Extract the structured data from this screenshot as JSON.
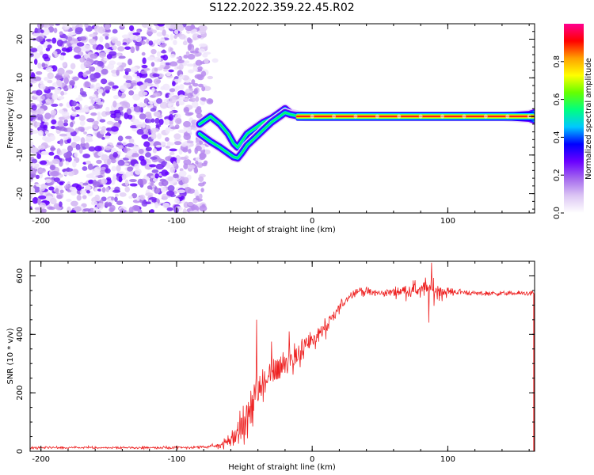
{
  "chart_data": [
    {
      "type": "heatmap",
      "title": "S122.2022.359.22.45.R02",
      "xlabel": "Height of straight line (km)",
      "ylabel": "Frequency (Hz)",
      "xlim": [
        -208,
        164
      ],
      "ylim": [
        -25,
        24
      ],
      "xticks": [
        -200,
        -100,
        0,
        100
      ],
      "xtick_labels": [
        "-200",
        "-100",
        "0",
        "100"
      ],
      "yticks": [
        -20,
        -10,
        0,
        10,
        20
      ],
      "ytick_labels": [
        "-20",
        "-10",
        "0",
        "10",
        "20"
      ],
      "noise_region_x": [
        -208,
        -78
      ],
      "doppler_track": {
        "x": [
          -83,
          -75,
          -68,
          -62,
          -58,
          -55,
          -52,
          -48,
          -42,
          -36,
          -30,
          -24,
          -20,
          -16,
          -10,
          -5,
          0,
          20,
          40,
          60,
          80,
          100,
          120,
          140,
          160,
          164
        ],
        "upper": [
          -2,
          0,
          -2,
          -4.5,
          -7,
          -8,
          -6.5,
          -4.5,
          -3,
          -1.5,
          -0.5,
          1,
          2,
          0.8,
          0.3,
          0.1,
          0,
          0,
          0,
          0,
          0,
          0,
          0,
          0,
          0.5,
          1
        ],
        "lower": [
          -4.5,
          -6.5,
          -8,
          -9.5,
          -10.5,
          -10.8,
          -9.5,
          -7.5,
          -5.5,
          -3.5,
          -1.5,
          0,
          1,
          0.5,
          0.1,
          0,
          0,
          0,
          0,
          0,
          0,
          0,
          0,
          0,
          -0.5,
          -1
        ]
      },
      "colorbar": {
        "label": "Normalized spectral amplitude",
        "range": [
          0,
          1
        ],
        "ticks": [
          0.0,
          0.2,
          0.4,
          0.6,
          0.8
        ],
        "tick_labels": [
          "0.0",
          "0.2",
          "0.4",
          "0.6",
          "0.8"
        ],
        "colors": [
          "#ffffff",
          "#dcc6f4",
          "#a468ee",
          "#6a00ff",
          "#0000ff",
          "#00c8ff",
          "#00ff80",
          "#66ff00",
          "#ffff00",
          "#ffa000",
          "#ff0000",
          "#ff0090"
        ]
      }
    },
    {
      "type": "line",
      "xlabel": "Height of straight line (km)",
      "ylabel": "SNR (10 * v/v)",
      "xlim": [
        -208,
        164
      ],
      "ylim": [
        0,
        650
      ],
      "xticks": [
        -200,
        -100,
        0,
        100
      ],
      "xtick_labels": [
        "-200",
        "-100",
        "0",
        "100"
      ],
      "yticks": [
        0,
        200,
        400,
        600
      ],
      "ytick_labels": [
        "0",
        "200",
        "400",
        "600"
      ],
      "color": "#ee2222",
      "series": [
        {
          "name": "SNR",
          "x": [
            -208,
            -150,
            -100,
            -80,
            -70,
            -60,
            -55,
            -50,
            -45,
            -40,
            -35,
            -30,
            -25,
            -20,
            -15,
            -10,
            -5,
            0,
            5,
            10,
            15,
            20,
            25,
            30,
            35,
            40,
            50,
            60,
            70,
            80,
            90,
            100,
            110,
            120,
            140,
            164
          ],
          "values": [
            12,
            12,
            12,
            14,
            18,
            40,
            60,
            100,
            150,
            200,
            230,
            260,
            290,
            300,
            320,
            340,
            360,
            380,
            400,
            420,
            450,
            490,
            520,
            540,
            550,
            545,
            540,
            545,
            550,
            555,
            550,
            545,
            545,
            540,
            540,
            540
          ],
          "noise": [
            4,
            4,
            4,
            5,
            8,
            30,
            45,
            60,
            70,
            70,
            70,
            70,
            60,
            60,
            55,
            50,
            45,
            45,
            40,
            35,
            30,
            25,
            15,
            12,
            15,
            15,
            12,
            15,
            25,
            35,
            40,
            15,
            10,
            8,
            8,
            8
          ]
        }
      ],
      "spikes": [
        {
          "x": -41,
          "y": 450
        },
        {
          "x": -30,
          "y": 375
        },
        {
          "x": -17,
          "y": 410
        },
        {
          "x": 88,
          "y": 645
        },
        {
          "x": 86,
          "y": 440
        }
      ]
    }
  ]
}
